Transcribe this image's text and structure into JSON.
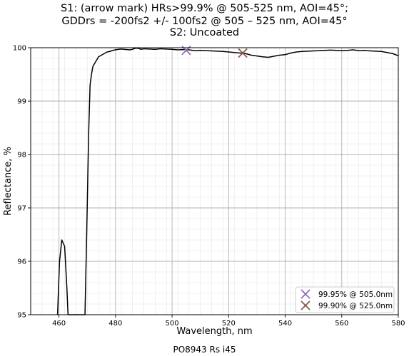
{
  "chart_data": {
    "type": "line",
    "title_lines": [
      "S1: (arrow mark) HRs>99.9% @ 505-525 nm, AOI=45°;",
      "GDDrs = -200fs2 +/- 100fs2 @ 505 – 525 nm, AOI=45°",
      "S2: Uncoated"
    ],
    "xlabel": "Wavelength, nm",
    "ylabel": "Reflectance, %",
    "xlim": [
      450,
      580
    ],
    "ylim": [
      95,
      100
    ],
    "x_ticks": [
      460,
      480,
      500,
      520,
      540,
      560,
      580
    ],
    "y_ticks": [
      95,
      96,
      97,
      98,
      99,
      100
    ],
    "grid": true,
    "legend_position": "lower-right",
    "series": [
      {
        "color": "#000000",
        "x": [
          459.5,
          460.2,
          461,
          462,
          462.8,
          463.2,
          469.2,
          469.8,
          470.5,
          471,
          471.5,
          472,
          473,
          474,
          475,
          476,
          477,
          478,
          479,
          480,
          481,
          482,
          483,
          484,
          485,
          486,
          487,
          488,
          489,
          490,
          492,
          494,
          496,
          498,
          500,
          502,
          504,
          506,
          508,
          510,
          512,
          514,
          516,
          518,
          520,
          522,
          524,
          526,
          528,
          530,
          532,
          534,
          536,
          538,
          540,
          542,
          544,
          546,
          548,
          550,
          552,
          554,
          556,
          558,
          560,
          562,
          564,
          566,
          568,
          570,
          572,
          574,
          576,
          578,
          580
        ],
        "y": [
          95.0,
          96.0,
          96.4,
          96.28,
          95.5,
          95.0,
          95.0,
          96.5,
          98.4,
          99.3,
          99.5,
          99.65,
          99.74,
          99.83,
          99.86,
          99.89,
          99.92,
          99.93,
          99.95,
          99.96,
          99.97,
          99.975,
          99.97,
          99.965,
          99.96,
          99.97,
          99.99,
          99.99,
          99.97,
          99.98,
          99.975,
          99.97,
          99.98,
          99.975,
          99.97,
          99.96,
          99.965,
          99.96,
          99.945,
          99.95,
          99.945,
          99.94,
          99.935,
          99.93,
          99.92,
          99.91,
          99.9,
          99.89,
          99.86,
          99.845,
          99.83,
          99.82,
          99.84,
          99.86,
          99.87,
          99.9,
          99.92,
          99.93,
          99.935,
          99.94,
          99.945,
          99.95,
          99.955,
          99.95,
          99.945,
          99.95,
          99.96,
          99.945,
          99.95,
          99.94,
          99.935,
          99.93,
          99.91,
          99.89,
          99.85
        ]
      }
    ],
    "markers": [
      {
        "x": 505,
        "y": 99.95,
        "color": "#9467bd",
        "label": "99.95% @ 505.0nm"
      },
      {
        "x": 525,
        "y": 99.9,
        "color": "#8c564b",
        "label": "99.90% @ 525.0nm"
      }
    ],
    "footer": "PO8943 Rs i45"
  }
}
